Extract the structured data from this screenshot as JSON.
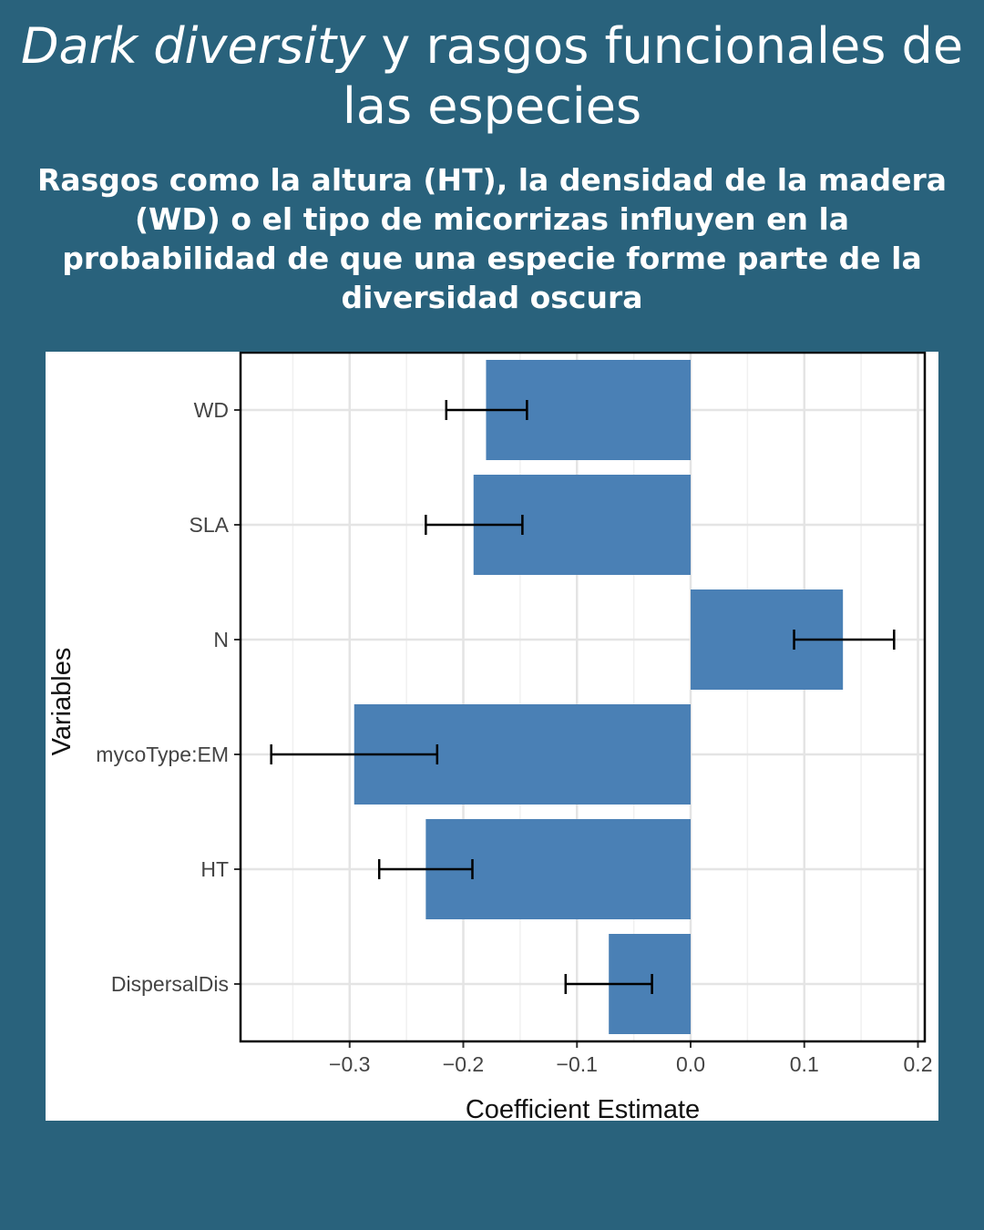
{
  "header": {
    "title_italic": "Dark diversity",
    "title_rest": " y rasgos funcionales de las especies",
    "subtitle": "Rasgos como la altura (HT), la densidad de la madera (WD) o el tipo de micorrizas influyen en la probabilidad de que una especie forme parte de la diversidad oscura"
  },
  "colors": {
    "background": "#29627c",
    "bar": "#4a80b5",
    "error": "#000000"
  },
  "chart_data": {
    "type": "bar",
    "orientation": "horizontal",
    "title": "",
    "xlabel": "Coefficient Estimate",
    "ylabel": "Variables",
    "xlim": [
      -0.396,
      0.206
    ],
    "xticks": [
      -0.3,
      -0.2,
      -0.1,
      0.0,
      0.1,
      0.2
    ],
    "xtick_labels": [
      "−0.3",
      "−0.2",
      "−0.1",
      "0.0",
      "0.1",
      "0.2"
    ],
    "grid": true,
    "categories": [
      "WD",
      "SLA",
      "N",
      "mycoType:EM",
      "HT",
      "DispersalDis"
    ],
    "values": [
      -0.18,
      -0.191,
      0.134,
      -0.296,
      -0.233,
      -0.072
    ],
    "error_low": [
      -0.215,
      -0.233,
      0.091,
      -0.369,
      -0.274,
      -0.11
    ],
    "error_high": [
      -0.144,
      -0.148,
      0.179,
      -0.223,
      -0.192,
      -0.034
    ]
  }
}
